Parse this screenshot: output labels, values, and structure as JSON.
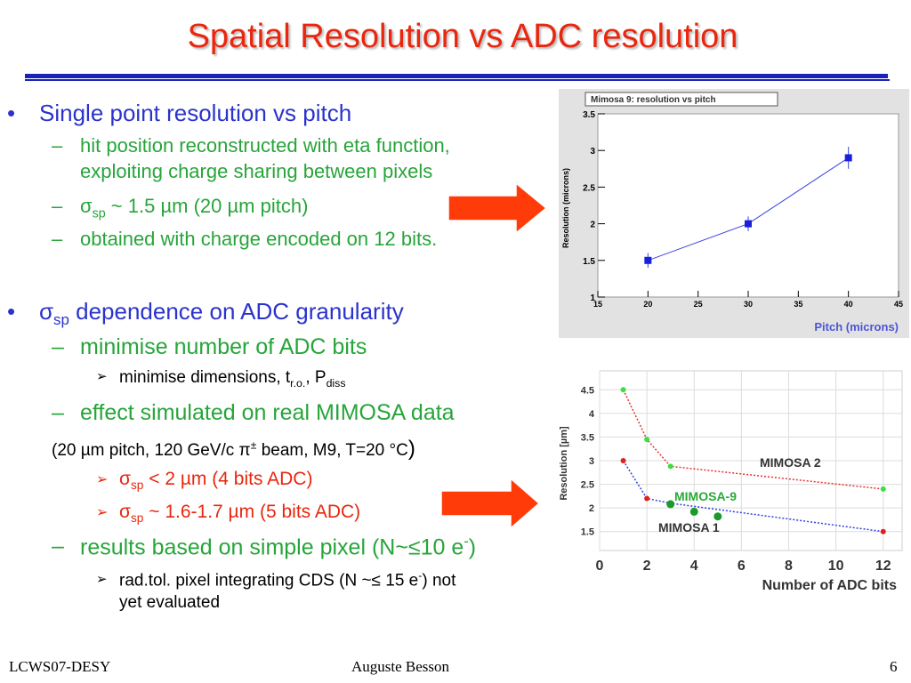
{
  "slide": {
    "title": "Spatial Resolution vs ADC resolution",
    "bullets": {
      "b1": "Single point resolution vs pitch",
      "b1_1a": "hit position reconstructed with eta function,",
      "b1_1b": "exploiting charge sharing between pixels",
      "b1_2_sigma": "σ",
      "b1_2_sub": "sp",
      "b1_2_rest": " ~ 1.5 µm (20 µm pitch)",
      "b1_3": "obtained with charge encoded on 12 bits.",
      "b2_sigma": "σ",
      "b2_sub": "sp",
      "b2_rest": " dependence on ADC granularity",
      "b2_1": "minimise number of ADC bits",
      "b2_1_1_main": "minimise dimensions, t",
      "b2_1_1_sub1": "r.o.",
      "b2_1_1_mid": ", P",
      "b2_1_1_sub2": "diss",
      "b2_2": "effect simulated on real MIMOSA data",
      "b2_2_note_a": "(20 µm pitch, 120 GeV/c ",
      "b2_2_note_pi": "π",
      "b2_2_note_sup": "±",
      "b2_2_note_b": " beam, M9, T=20 °C",
      "b2_2_note_paren": ")",
      "b2_2_1_sigma": "σ",
      "b2_2_1_sub": "sp",
      "b2_2_1_rest": " < 2 µm (4 bits ADC)",
      "b2_2_2_sigma": "σ",
      "b2_2_2_sub": "sp",
      "b2_2_2_rest": " ~ 1.6-1.7 µm (5 bits ADC)",
      "b2_3_a": "results based on simple pixel (N~≤10 e",
      "b2_3_sup": "-",
      "b2_3_b": ")",
      "b2_3_1_a": "rad.tol. pixel integrating CDS (N ~≤ 15 e",
      "b2_3_1_sup": "-",
      "b2_3_1_b": ") not",
      "b2_3_1_c": "yet evaluated",
      "dash": "–",
      "bullet": "•",
      "chev": "➢"
    },
    "footer": {
      "left": "LCWS07-DESY",
      "center": "Auguste Besson",
      "right": "6"
    },
    "colors": {
      "title": "#e8270e",
      "rule": "#1a21b8",
      "level1": "#2b33cc",
      "level2": "#27a53a",
      "arrow": "#ff3b0a"
    }
  },
  "chart_data": [
    {
      "type": "scatter",
      "title": "Mimosa 9: resolution vs pitch",
      "xlabel": "Pitch (microns)",
      "ylabel": "Resolution (microns)",
      "xlim": [
        15,
        45
      ],
      "ylim": [
        1,
        3.5
      ],
      "xticks": [
        "15",
        "20",
        "25",
        "30",
        "35",
        "40",
        "45"
      ],
      "yticks": [
        "1",
        "1.5",
        "2",
        "2.5",
        "3",
        "3.5"
      ],
      "series": [
        {
          "x": [
            20,
            30,
            40
          ],
          "y": [
            1.5,
            2.0,
            2.9
          ],
          "err": [
            0.1,
            0.1,
            0.15
          ]
        }
      ]
    },
    {
      "type": "line",
      "xlabel": "Number of ADC bits",
      "ylabel": "Resolution [µm]",
      "xlim": [
        0,
        12.8
      ],
      "ylim": [
        1.1,
        4.9
      ],
      "xticks": [
        "0",
        "2",
        "4",
        "6",
        "8",
        "10",
        "12"
      ],
      "yticks": [
        "1.5",
        "2",
        "2.5",
        "3",
        "3.5",
        "4",
        "4.5"
      ],
      "series": [
        {
          "name": "MIMOSA 2",
          "x": [
            1,
            2,
            3,
            12
          ],
          "y": [
            4.5,
            3.45,
            2.88,
            2.4
          ]
        },
        {
          "name": "MIMOSA 1",
          "x": [
            1,
            2,
            3,
            12
          ],
          "y": [
            3.0,
            2.2,
            2.1,
            1.5
          ]
        },
        {
          "name": "MIMOSA-9",
          "x": [
            3,
            4,
            5
          ],
          "y": [
            2.08,
            1.92,
            1.82
          ]
        }
      ]
    }
  ]
}
